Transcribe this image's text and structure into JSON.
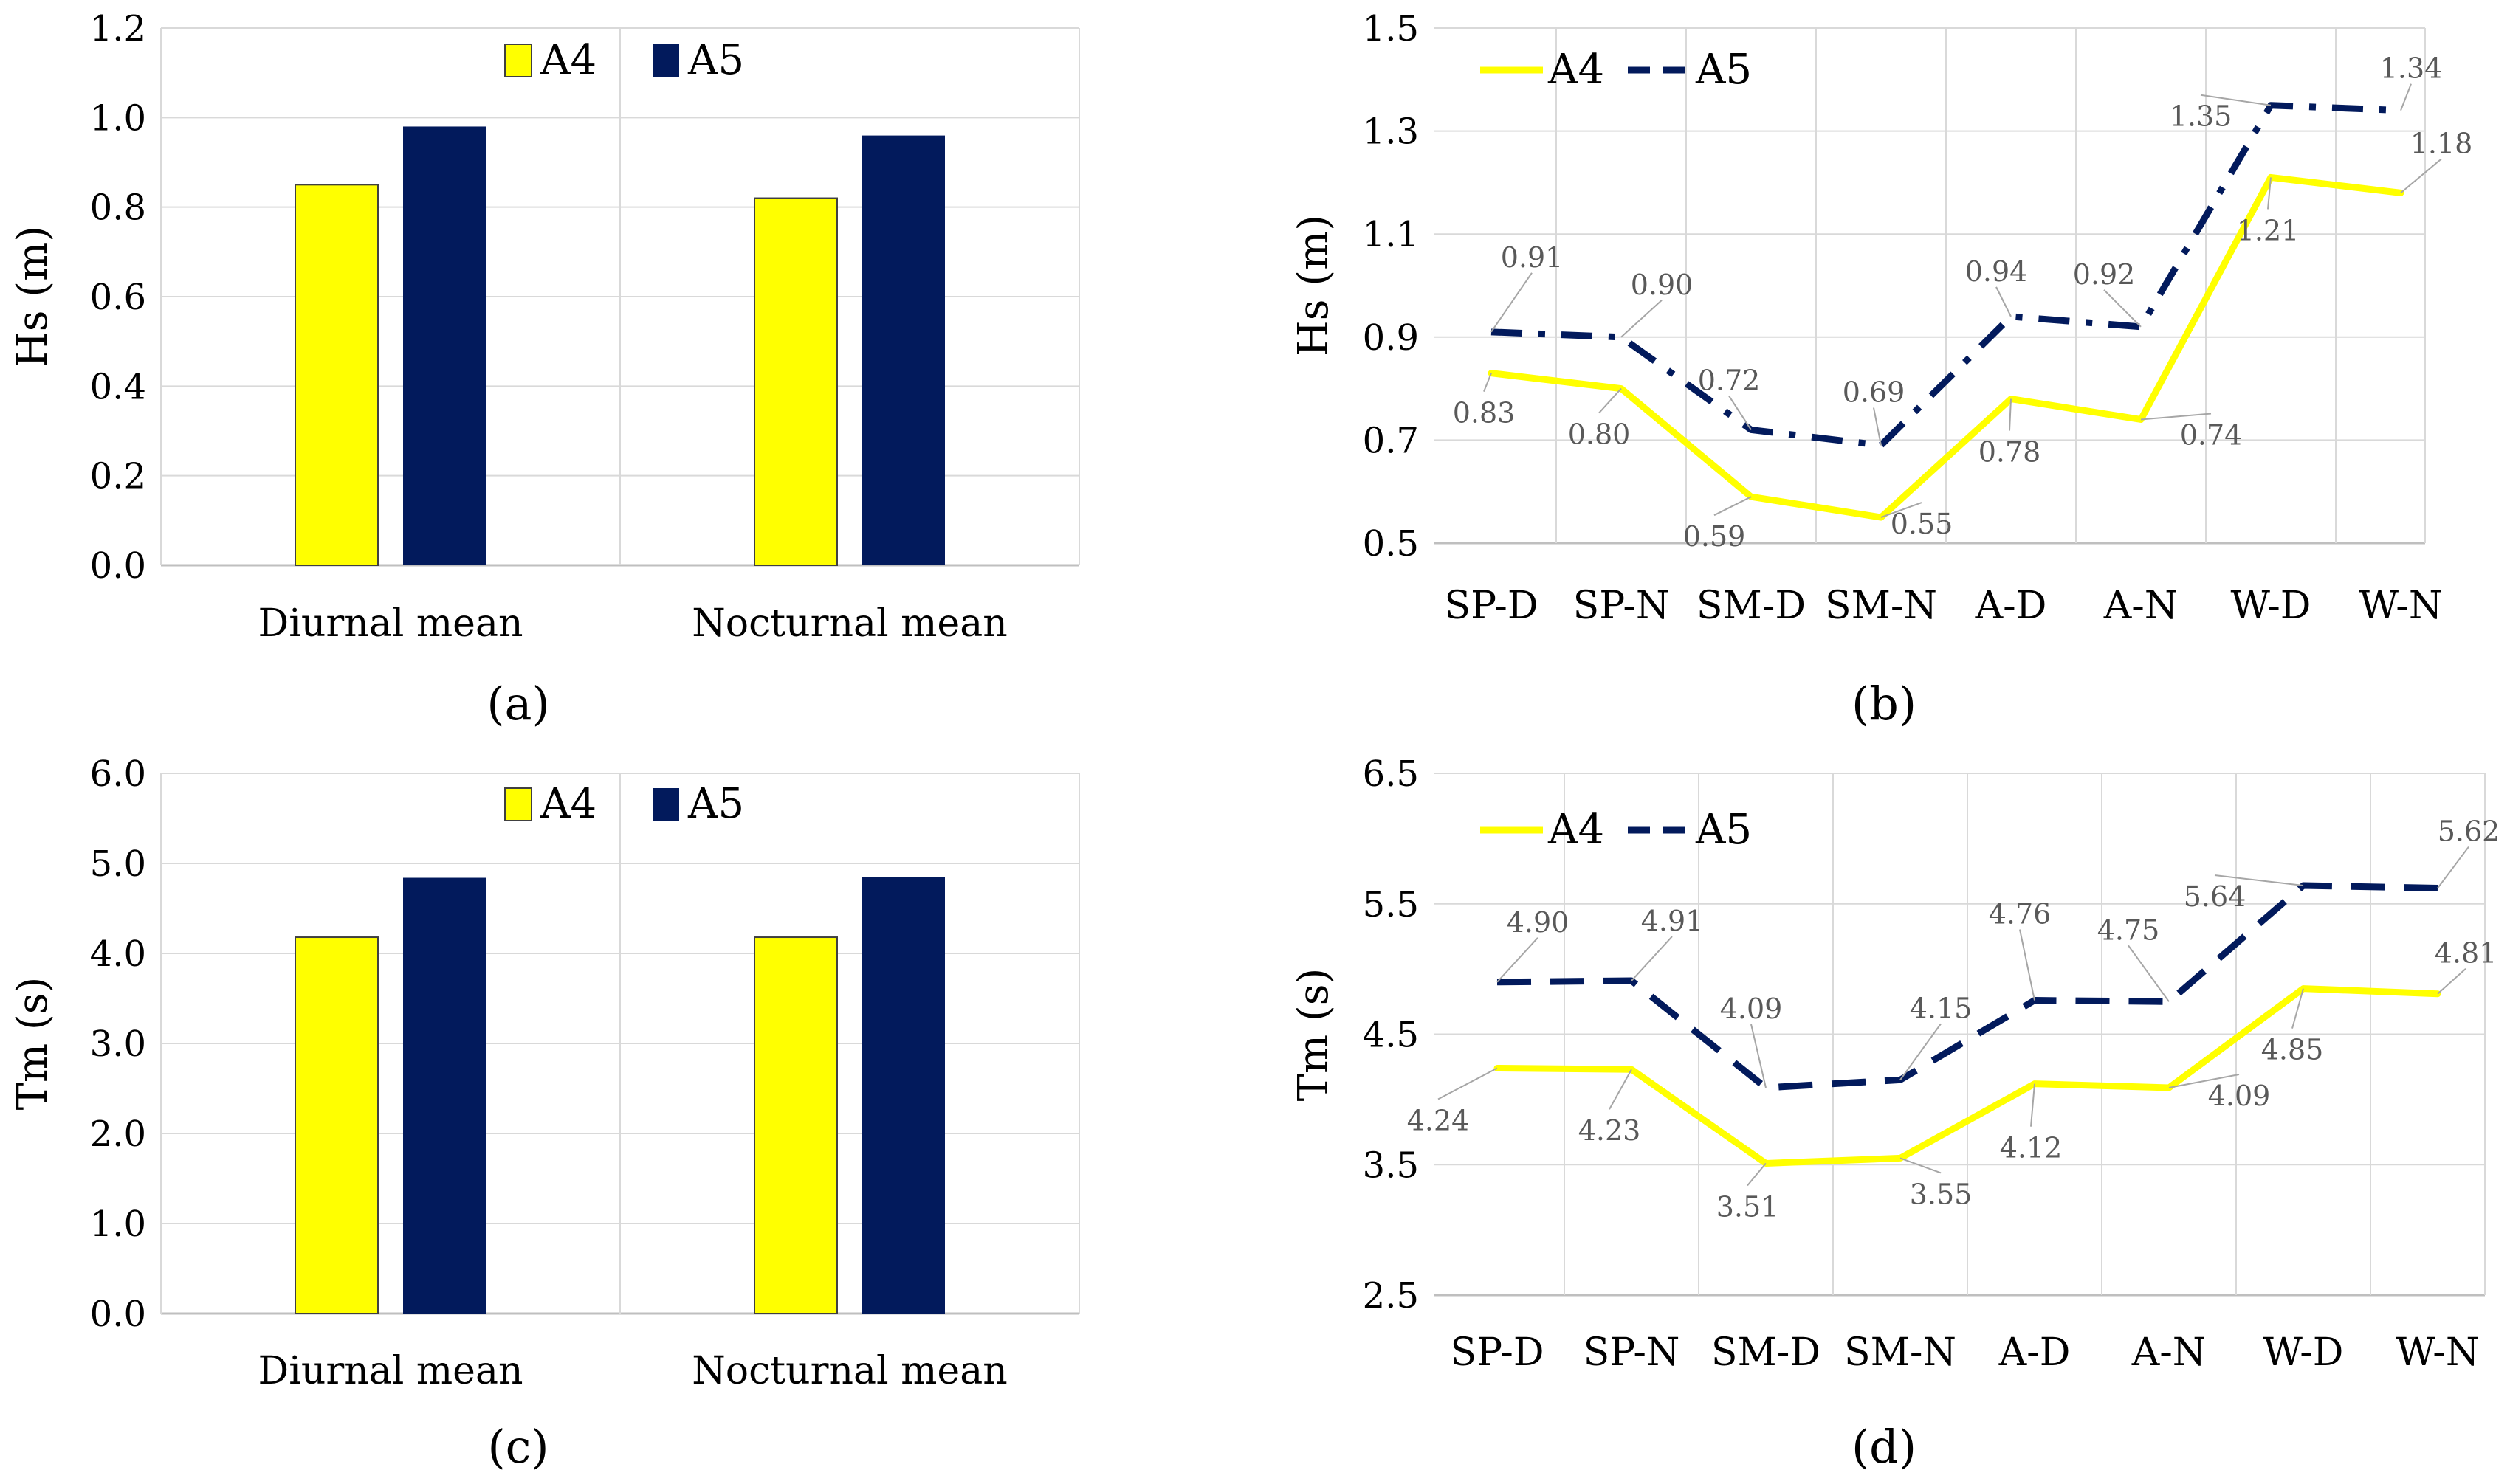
{
  "colors": {
    "a4": "#FFFF00",
    "a5": "#021A5C",
    "grid": "#D9D9D9",
    "axis": "#BFBFBF",
    "label": "#595959"
  },
  "chart_data": [
    {
      "id": "a",
      "type": "bar",
      "panel_label": "(a)",
      "ylabel": "Hs (m)",
      "categories": [
        "Diurnal mean",
        "Nocturnal mean"
      ],
      "series": [
        {
          "name": "A4",
          "values": [
            0.85,
            0.82
          ]
        },
        {
          "name": "A5",
          "values": [
            0.98,
            0.96
          ]
        }
      ],
      "ylim": [
        0,
        1.2
      ],
      "yticks": [
        "0.0",
        "0.2",
        "0.4",
        "0.6",
        "0.8",
        "1.0",
        "1.2"
      ],
      "legend_position": "top-center"
    },
    {
      "id": "b",
      "type": "line",
      "panel_label": "(b)",
      "ylabel": "Hs (m)",
      "categories": [
        "SP-D",
        "SP-N",
        "SM-D",
        "SM-N",
        "A-D",
        "A-N",
        "W-D",
        "W-N"
      ],
      "series": [
        {
          "name": "A4",
          "values": [
            0.83,
            0.8,
            0.59,
            0.55,
            0.78,
            0.74,
            1.21,
            1.18
          ],
          "labels": [
            "0.83",
            "0.80",
            "0.59",
            "0.55",
            "0.78",
            "0.74",
            "1.21",
            "1.18"
          ]
        },
        {
          "name": "A5",
          "values": [
            0.91,
            0.9,
            0.72,
            0.69,
            0.94,
            0.92,
            1.35,
            1.34
          ],
          "labels": [
            "0.91",
            "0.90",
            "0.72",
            "0.69",
            "0.94",
            "0.92",
            "1.35",
            "1.34"
          ]
        }
      ],
      "ylim": [
        0.5,
        1.5
      ],
      "yticks": [
        "0.5",
        "0.7",
        "0.9",
        "1.1",
        "1.3",
        "1.5"
      ],
      "legend_position": "top-left"
    },
    {
      "id": "c",
      "type": "bar",
      "panel_label": "(c)",
      "ylabel": "Tm (s)",
      "categories": [
        "Diurnal mean",
        "Nocturnal mean"
      ],
      "series": [
        {
          "name": "A4",
          "values": [
            4.18,
            4.18
          ]
        },
        {
          "name": "A5",
          "values": [
            4.84,
            4.85
          ]
        }
      ],
      "ylim": [
        0,
        6
      ],
      "yticks": [
        "0.0",
        "1.0",
        "2.0",
        "3.0",
        "4.0",
        "5.0",
        "6.0"
      ],
      "legend_position": "top-center"
    },
    {
      "id": "d",
      "type": "line",
      "panel_label": "(d)",
      "ylabel": "Tm (s)",
      "categories": [
        "SP-D",
        "SP-N",
        "SM-D",
        "SM-N",
        "A-D",
        "A-N",
        "W-D",
        "W-N"
      ],
      "series": [
        {
          "name": "A4",
          "values": [
            4.24,
            4.23,
            3.51,
            3.55,
            4.12,
            4.09,
            4.85,
            4.81
          ],
          "labels": [
            "4.24",
            "4.23",
            "3.51",
            "3.55",
            "4.12",
            "4.09",
            "4.85",
            "4.81"
          ]
        },
        {
          "name": "A5",
          "values": [
            4.9,
            4.91,
            4.09,
            4.15,
            4.76,
            4.75,
            5.64,
            5.62
          ],
          "labels": [
            "4.90",
            "4.91",
            "4.09",
            "4.15",
            "4.76",
            "4.75",
            "5.64",
            "5.62"
          ]
        }
      ],
      "ylim": [
        2.5,
        6.5
      ],
      "yticks": [
        "2.5",
        "3.5",
        "4.5",
        "5.5",
        "6.5"
      ],
      "legend_position": "top-left"
    }
  ]
}
